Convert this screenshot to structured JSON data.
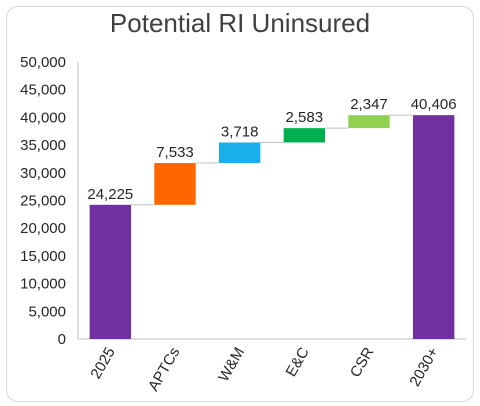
{
  "chart_data": {
    "type": "waterfall",
    "title": "Potential RI Uninsured",
    "categories": [
      "2025",
      "APTCs",
      "W&M",
      "E&C",
      "CSR",
      "2030+"
    ],
    "values": [
      24225,
      7533,
      3718,
      2583,
      2347,
      40406
    ],
    "labels": [
      "24,225",
      "7,533",
      "3,718",
      "2,583",
      "2,347",
      "40,406"
    ],
    "kinds": [
      "total",
      "increase",
      "increase",
      "increase",
      "increase",
      "total"
    ],
    "colors": [
      "#7030a0",
      "#ff6600",
      "#1aaeea",
      "#00b050",
      "#92d050",
      "#7030a0"
    ],
    "ylim": [
      0,
      50000
    ],
    "yticks": [
      "0",
      "5,000",
      "10,000",
      "15,000",
      "20,000",
      "25,000",
      "30,000",
      "35,000",
      "40,000",
      "45,000",
      "50,000"
    ],
    "grid": false,
    "legend": "none"
  }
}
